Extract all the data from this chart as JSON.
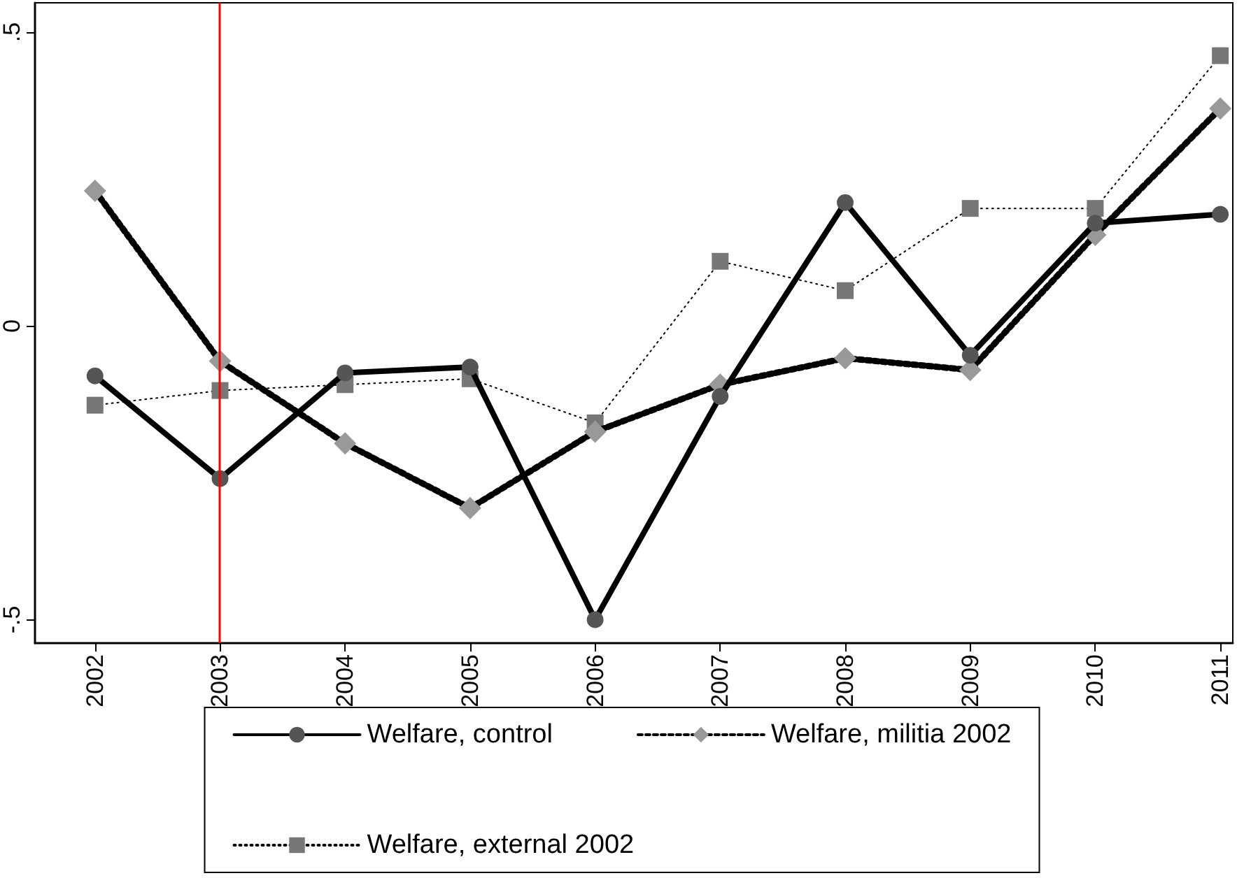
{
  "chart_data": {
    "type": "line",
    "x": [
      2002,
      2003,
      2004,
      2005,
      2006,
      2007,
      2008,
      2009,
      2010,
      2011
    ],
    "series": [
      {
        "name": "Welfare, control",
        "color": "#555555",
        "marker": "circle",
        "line_style": "solid",
        "values": [
          -0.085,
          -0.26,
          -0.08,
          -0.07,
          -0.5,
          -0.12,
          0.21,
          -0.05,
          0.175,
          0.19
        ]
      },
      {
        "name": "Welfare, militia 2002",
        "color": "#999999",
        "marker": "diamond",
        "line_style": "dashed",
        "values": [
          0.23,
          -0.06,
          -0.2,
          -0.31,
          -0.18,
          -0.1,
          -0.055,
          -0.075,
          0.155,
          0.37
        ]
      },
      {
        "name": "Welfare, external 2002",
        "color": "#777777",
        "marker": "square",
        "line_style": "dotted",
        "values": [
          -0.135,
          -0.11,
          -0.1,
          -0.09,
          -0.165,
          0.11,
          0.06,
          0.2,
          0.2,
          0.46
        ]
      }
    ],
    "xlim": [
      2001.52,
      2011.1
    ],
    "xticks": [
      2002,
      2003,
      2004,
      2005,
      2006,
      2007,
      2008,
      2009,
      2010,
      2011
    ],
    "ylim": [
      -0.54,
      0.55
    ],
    "yticks": [
      {
        "value": -0.5,
        "label": "-.5"
      },
      0,
      {
        "value": 0.5,
        "label": ".5"
      }
    ],
    "ref_lines": [
      {
        "axis": "x",
        "value": 2003,
        "color": "#ff0000"
      }
    ],
    "grid": false,
    "legend": "bottom"
  }
}
